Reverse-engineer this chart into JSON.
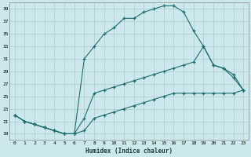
{
  "xlabel": "Humidex (Indice chaleur)",
  "background_color": "#cce8ec",
  "grid_color": "#aacccc",
  "line_color": "#1e6e6e",
  "xlim": [
    -0.5,
    23.5
  ],
  "ylim": [
    18,
    40
  ],
  "yticks": [
    19,
    21,
    23,
    25,
    27,
    29,
    31,
    33,
    35,
    37,
    39
  ],
  "xticks": [
    0,
    1,
    2,
    3,
    4,
    5,
    6,
    7,
    8,
    9,
    10,
    11,
    12,
    13,
    14,
    15,
    16,
    17,
    18,
    19,
    20,
    21,
    22,
    23
  ],
  "curve_top_x": [
    0,
    1,
    2,
    3,
    4,
    5,
    6,
    7,
    8,
    9,
    10,
    11,
    12,
    13,
    14,
    15,
    16,
    17,
    18,
    19,
    20,
    21,
    22,
    23
  ],
  "curve_top_y": [
    22,
    21,
    20.5,
    20,
    19.5,
    19,
    19,
    31,
    33,
    35,
    36,
    37.5,
    37.5,
    38.5,
    39,
    39.5,
    39.5,
    38.5,
    35.5,
    33,
    30,
    29.5,
    28.5,
    26
  ],
  "curve_mid_x": [
    0,
    1,
    2,
    3,
    4,
    5,
    6,
    7,
    8,
    9,
    10,
    11,
    12,
    13,
    14,
    15,
    16,
    17,
    18,
    19,
    20,
    21,
    22,
    23
  ],
  "curve_mid_y": [
    22,
    21,
    20.5,
    20,
    19.5,
    19,
    19,
    21.5,
    25.5,
    26,
    26.5,
    27,
    27.5,
    28,
    28.5,
    29,
    29.5,
    30,
    30.5,
    33,
    30,
    29.5,
    28,
    26
  ],
  "curve_bot_x": [
    0,
    1,
    2,
    3,
    4,
    5,
    6,
    7,
    8,
    9,
    10,
    11,
    12,
    13,
    14,
    15,
    16,
    17,
    18,
    19,
    20,
    21,
    22,
    23
  ],
  "curve_bot_y": [
    22,
    21,
    20.5,
    20,
    19.5,
    19,
    19,
    19.5,
    21.5,
    22,
    22.5,
    23,
    23.5,
    24,
    24.5,
    25,
    25.5,
    25.5,
    25.5,
    25.5,
    25.5,
    25.5,
    25.5,
    26
  ]
}
